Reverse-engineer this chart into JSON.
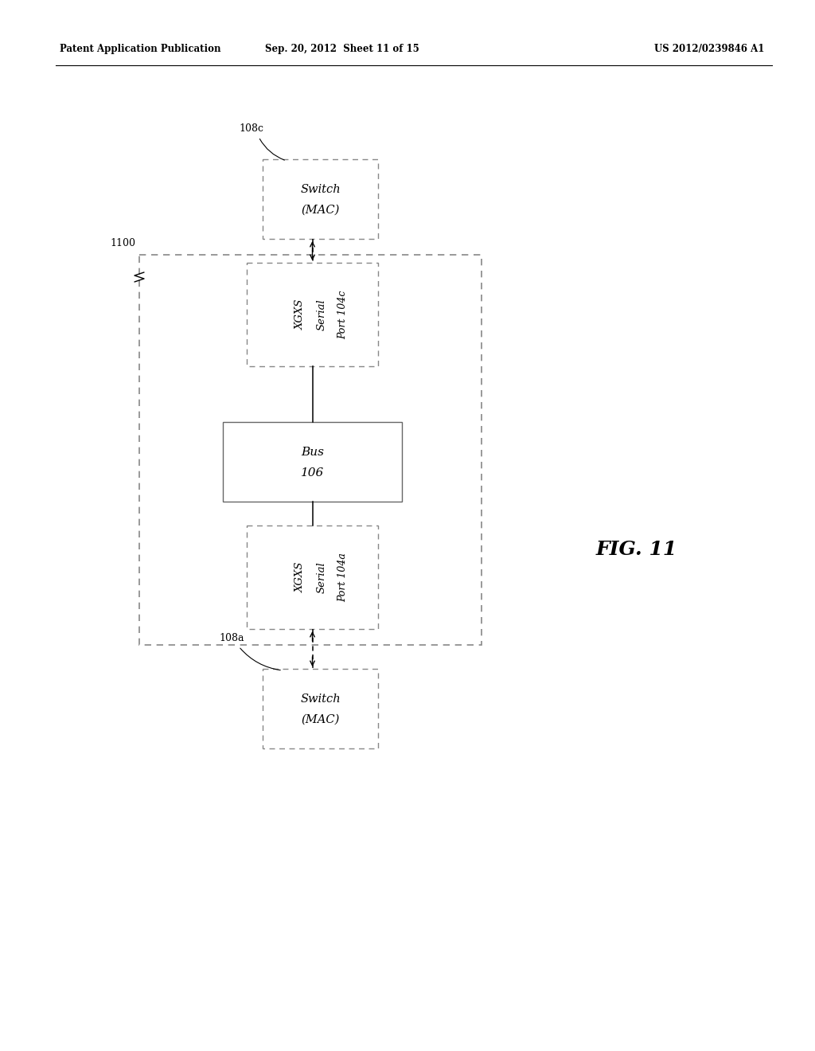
{
  "bg_color": "#ffffff",
  "header_left": "Patent Application Publication",
  "header_center": "Sep. 20, 2012  Sheet 11 of 15",
  "header_right": "US 2012/0239846 A1",
  "fig_label": "FIG. 11",
  "outer_box_label": "1100",
  "switch_top_label": "108c",
  "switch_top_text_line1": "Switch",
  "switch_top_text_line2": "(MAC)",
  "xgxs_top_text_line1": "XGXS",
  "xgxs_top_text_line2": "Serial",
  "xgxs_top_text_line3": "Port 104c",
  "bus_text_line1": "Bus",
  "bus_text_line2": "106",
  "xgxs_bot_text_line1": "XGXS",
  "xgxs_bot_text_line2": "Serial",
  "xgxs_bot_text_line3": "Port 104a",
  "switch_bot_label": "108a",
  "switch_bot_text_line1": "Switch",
  "switch_bot_text_line2": "(MAC)"
}
